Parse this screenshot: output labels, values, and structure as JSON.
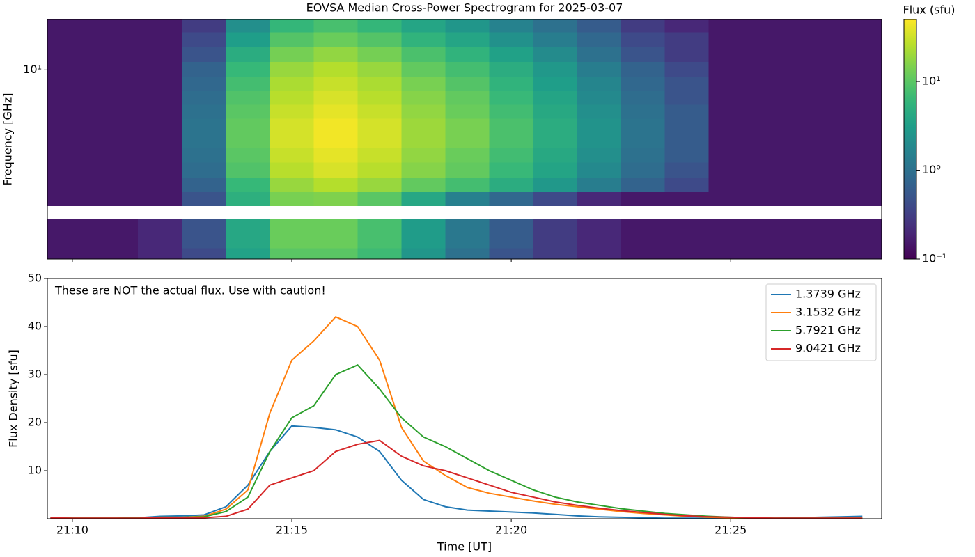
{
  "chart_data": [
    {
      "type": "heatmap",
      "title": "EOVSA Median Cross-Power Spectrogram for 2025-03-07",
      "ylabel": "Frequency [GHz]",
      "x": [
        1270,
        1271,
        1272,
        1273,
        1274,
        1275,
        1276,
        1277,
        1278,
        1279,
        1280,
        1281,
        1282,
        1283,
        1284,
        1285,
        1286,
        1287,
        1288
      ],
      "y": [
        17,
        14,
        12,
        10,
        8.5,
        7.2,
        6.1,
        5.2,
        4.4,
        3.7,
        3.1,
        2.6,
        2.2,
        1.9,
        1.6,
        1.35,
        1.15
      ],
      "z": [
        [
          0.15,
          0.15,
          0.15,
          0.3,
          2.2,
          6.2,
          8,
          6.2,
          3.8,
          2.6,
          1.6,
          1,
          0.6,
          0.3,
          0.2,
          0.15,
          0.15,
          0.15,
          0.15
        ],
        [
          0.15,
          0.15,
          0.15,
          0.4,
          3.2,
          9.2,
          12,
          9.2,
          5.6,
          3.8,
          2.3,
          1.4,
          0.8,
          0.4,
          0.3,
          0.15,
          0.15,
          0.15,
          0.15
        ],
        [
          0.15,
          0.15,
          0.15,
          0.5,
          4.6,
          13.6,
          18,
          13.6,
          8.3,
          5.6,
          3.4,
          2,
          1,
          0.5,
          0.3,
          0.15,
          0.15,
          0.15,
          0.15
        ],
        [
          0.15,
          0.15,
          0.15,
          0.7,
          6.4,
          19,
          25,
          19,
          11,
          7.6,
          4.7,
          2.7,
          1.4,
          0.7,
          0.4,
          0.15,
          0.15,
          0.15,
          0.15
        ],
        [
          0.15,
          0.15,
          0.15,
          0.8,
          7.6,
          23,
          30,
          23,
          14,
          9.2,
          5.6,
          3.2,
          1.7,
          0.8,
          0.5,
          0.15,
          0.15,
          0.15,
          0.15
        ],
        [
          0.15,
          0.15,
          0.15,
          0.9,
          8.9,
          26,
          35,
          26,
          16,
          11,
          6.5,
          3.7,
          1.9,
          0.9,
          0.5,
          0.15,
          0.15,
          0.15,
          0.15
        ],
        [
          0.15,
          0.15,
          0.15,
          1,
          10,
          30,
          40,
          30,
          18,
          12,
          7.4,
          4.2,
          2.2,
          1,
          0.6,
          0.15,
          0.15,
          0.15,
          0.15
        ],
        [
          0.15,
          0.15,
          0.15,
          1.1,
          11,
          34,
          45,
          34,
          20,
          14,
          8.3,
          4.7,
          2.4,
          1.1,
          0.6,
          0.15,
          0.15,
          0.15,
          0.15
        ],
        [
          0.15,
          0.15,
          0.15,
          1.1,
          11,
          34,
          45,
          34,
          20,
          14,
          8.3,
          4.7,
          2.4,
          1.1,
          0.6,
          0.15,
          0.15,
          0.15,
          0.15
        ],
        [
          0.15,
          0.15,
          0.15,
          1,
          10,
          30,
          40,
          30,
          18,
          12,
          7.4,
          4.2,
          2.2,
          1,
          0.6,
          0.15,
          0.15,
          0.15,
          0.15
        ],
        [
          0.15,
          0.15,
          0.15,
          0.9,
          8.9,
          26,
          35,
          26,
          16,
          11,
          6.5,
          3.7,
          1.9,
          0.9,
          0.5,
          0.15,
          0.15,
          0.15,
          0.15
        ],
        [
          0.15,
          0.15,
          0.15,
          0.7,
          6.4,
          19,
          25,
          19,
          11,
          7.6,
          4.7,
          2.7,
          1.4,
          0.7,
          0.4,
          0.15,
          0.15,
          0.15,
          0.15
        ],
        [
          0.15,
          0.15,
          0.15,
          0.5,
          5,
          14,
          15,
          10,
          4,
          1.5,
          0.8,
          0.4,
          0.2,
          0.15,
          0.15,
          0.15,
          0.15,
          0.15,
          0.15
        ],
        [
          null,
          null,
          null,
          null,
          null,
          null,
          null,
          null,
          null,
          null,
          null,
          null,
          null,
          null,
          null,
          null,
          null,
          null,
          null
        ],
        [
          0.15,
          0.15,
          0.2,
          0.5,
          4,
          12,
          12,
          8,
          3,
          1.2,
          0.6,
          0.3,
          0.2,
          0.15,
          0.15,
          0.15,
          0.15,
          0.15,
          0.15
        ],
        [
          0.15,
          0.15,
          0.2,
          0.5,
          4,
          12,
          12,
          8,
          3,
          1.2,
          0.6,
          0.3,
          0.2,
          0.15,
          0.15,
          0.15,
          0.15,
          0.15,
          0.15
        ],
        [
          0.15,
          0.15,
          0.2,
          0.4,
          3.5,
          10,
          10,
          7,
          2.6,
          1,
          0.5,
          0.3,
          0.2,
          0.15,
          0.15,
          0.15,
          0.15,
          0.15,
          0.15
        ]
      ],
      "xlim": [
        1269.43,
        1288.44
      ],
      "xticks": [
        1270,
        1275,
        1280,
        1285
      ],
      "ylim": [
        1.1,
        18
      ],
      "ylog": true,
      "yticks": [
        {
          "value": 10,
          "label": "10¹"
        }
      ],
      "colorbar": {
        "title": "Flux (sfu)",
        "colormap": "viridis",
        "log": true,
        "lim": [
          0.1,
          50
        ],
        "ticks": [
          {
            "value": 0.1,
            "label": "10⁻¹"
          },
          {
            "value": 1,
            "label": "10⁰"
          },
          {
            "value": 10,
            "label": "10¹"
          }
        ]
      }
    },
    {
      "type": "line",
      "annotation": "These are NOT the actual flux. Use with caution!",
      "xlabel": "Time [UT]",
      "ylabel": "Flux Density [sfu]",
      "x": [
        1269.5,
        1270,
        1270.5,
        1271,
        1271.5,
        1272,
        1272.5,
        1273,
        1273.5,
        1274,
        1274.5,
        1275,
        1275.5,
        1276,
        1276.5,
        1277,
        1277.5,
        1278,
        1278.5,
        1279,
        1279.5,
        1280,
        1280.5,
        1281,
        1281.5,
        1282,
        1282.5,
        1283,
        1283.5,
        1284,
        1284.5,
        1285,
        1285.5,
        1286,
        1286.5,
        1287,
        1287.5,
        1288
      ],
      "series": [
        {
          "name": "1.3739 GHz",
          "color": "#1f77b4",
          "values": [
            0.2,
            0.1,
            0.1,
            0.1,
            0.2,
            0.5,
            0.6,
            0.8,
            2.5,
            7,
            14,
            19.3,
            19,
            18.5,
            17,
            14,
            8,
            4,
            2.5,
            1.8,
            1.6,
            1.4,
            1.2,
            0.9,
            0.6,
            0.4,
            0.3,
            0.2,
            0.1,
            0.1,
            0.1,
            0.1,
            0.1,
            0.1,
            0.2,
            0.3,
            0.4,
            0.5
          ]
        },
        {
          "name": "3.1532 GHz",
          "color": "#ff7f0e",
          "values": [
            0.2,
            0.1,
            0.1,
            0.1,
            0.2,
            0.3,
            0.3,
            0.5,
            2,
            6,
            22,
            33,
            37,
            42,
            40,
            33,
            19,
            12,
            9,
            6.5,
            5.3,
            4.5,
            3.7,
            3,
            2.5,
            2,
            1.5,
            1.1,
            0.8,
            0.5,
            0.3,
            0.2,
            0.1,
            0.1,
            0.1,
            0.1,
            0.1,
            0.1
          ]
        },
        {
          "name": "5.7921 GHz",
          "color": "#2ca02c",
          "values": [
            0.2,
            0.1,
            0.1,
            0.1,
            0.2,
            0.3,
            0.3,
            0.4,
            1.5,
            4.5,
            14,
            21,
            23.5,
            30,
            32,
            27,
            21,
            17,
            15,
            12.5,
            10,
            8,
            6,
            4.5,
            3.5,
            2.8,
            2.1,
            1.6,
            1.1,
            0.8,
            0.5,
            0.3,
            0.2,
            0.1,
            0.1,
            0.1,
            0.1,
            0.1
          ]
        },
        {
          "name": "9.0421 GHz",
          "color": "#d62728",
          "values": [
            0.2,
            0.1,
            0.1,
            0.1,
            0.1,
            0.2,
            0.2,
            0.2,
            0.5,
            2,
            7,
            8.5,
            10,
            14,
            15.5,
            16.3,
            13,
            11,
            10,
            8.5,
            7,
            5.5,
            4.5,
            3.5,
            2.8,
            2.2,
            1.7,
            1.3,
            0.9,
            0.6,
            0.4,
            0.3,
            0.2,
            0.1,
            0.1,
            0.1,
            0.1,
            0.1
          ]
        }
      ],
      "xlim": [
        1269.43,
        1288.44
      ],
      "xticks": [
        {
          "value": 1270,
          "label": "21:10"
        },
        {
          "value": 1275,
          "label": "21:15"
        },
        {
          "value": 1280,
          "label": "21:20"
        },
        {
          "value": 1285,
          "label": "21:25"
        }
      ],
      "ylim": [
        0,
        50
      ],
      "yticks": [
        10,
        20,
        30,
        40,
        50
      ],
      "legend": "upper right"
    }
  ]
}
